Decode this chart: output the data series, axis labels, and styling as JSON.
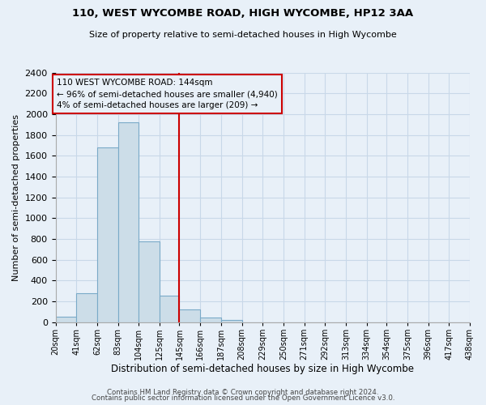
{
  "title1": "110, WEST WYCOMBE ROAD, HIGH WYCOMBE, HP12 3AA",
  "title2": "Size of property relative to semi-detached houses in High Wycombe",
  "xlabel": "Distribution of semi-detached houses by size in High Wycombe",
  "ylabel": "Number of semi-detached properties",
  "footer1": "Contains HM Land Registry data © Crown copyright and database right 2024.",
  "footer2": "Contains public sector information licensed under the Open Government Licence v3.0.",
  "bin_edges": [
    20,
    41,
    62,
    83,
    104,
    125,
    145,
    166,
    187,
    208,
    229,
    250,
    271,
    292,
    313,
    334,
    354,
    375,
    396,
    417,
    438
  ],
  "bin_counts": [
    55,
    280,
    1680,
    1920,
    775,
    255,
    125,
    45,
    20,
    0,
    0,
    0,
    0,
    0,
    0,
    0,
    0,
    0,
    0,
    0
  ],
  "property_line_x": 145,
  "annotation_title": "110 WEST WYCOMBE ROAD: 144sqm",
  "annotation_line1": "← 96% of semi-detached houses are smaller (4,940)",
  "annotation_line2": "4% of semi-detached houses are larger (209) →",
  "bar_facecolor": "#ccdde8",
  "bar_edgecolor": "#7aaac8",
  "vline_color": "#cc0000",
  "annotation_box_edgecolor": "#cc0000",
  "ylim": [
    0,
    2400
  ],
  "yticks": [
    0,
    200,
    400,
    600,
    800,
    1000,
    1200,
    1400,
    1600,
    1800,
    2000,
    2200,
    2400
  ],
  "grid_color": "#c8d8e8",
  "background_color": "#e8f0f8"
}
